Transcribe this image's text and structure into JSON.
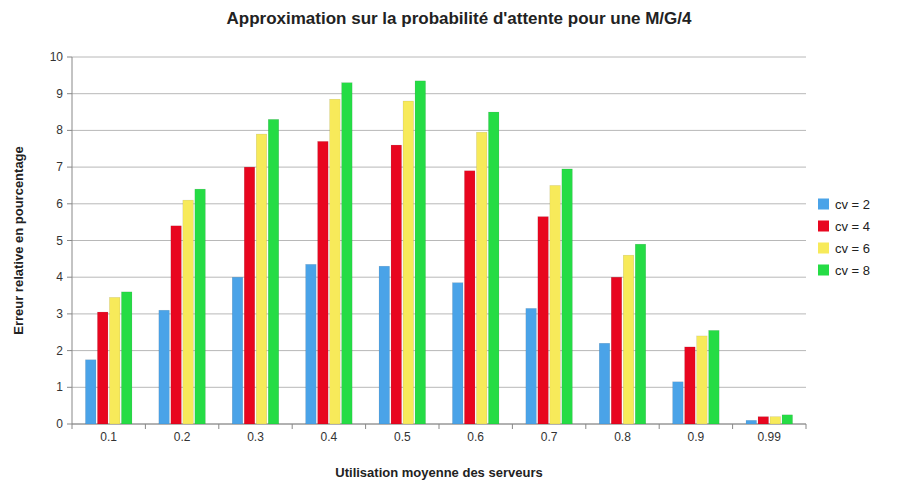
{
  "chart_data": {
    "type": "bar",
    "title": "Approximation sur la probabilité d'attente pour une M/G/4",
    "x_label": "Utilisation moyenne des serveurs",
    "y_label": "Erreur relative en pourcentage",
    "categories": [
      "0.1",
      "0.2",
      "0.3",
      "0.4",
      "0.5",
      "0.6",
      "0.7",
      "0.8",
      "0.9",
      "0.99"
    ],
    "series": [
      {
        "name": "cv = 2",
        "color": "#4aa3e8",
        "values": [
          1.75,
          3.1,
          4.0,
          4.35,
          4.3,
          3.85,
          3.15,
          2.2,
          1.15,
          0.1
        ]
      },
      {
        "name": "cv = 4",
        "color": "#e8061f",
        "values": [
          3.05,
          5.4,
          7.0,
          7.7,
          7.6,
          6.9,
          5.65,
          4.0,
          2.1,
          0.2
        ]
      },
      {
        "name": "cv = 6",
        "color": "#f7ea5a",
        "values": [
          3.45,
          6.1,
          7.9,
          8.85,
          8.8,
          7.95,
          6.5,
          4.6,
          2.4,
          0.2
        ]
      },
      {
        "name": "cv = 8",
        "color": "#25dc45",
        "values": [
          3.6,
          6.4,
          8.3,
          9.3,
          9.35,
          8.5,
          6.95,
          4.9,
          2.55,
          0.25
        ]
      }
    ],
    "ylim": [
      0,
      10
    ],
    "yticks": [
      0,
      1,
      2,
      3,
      4,
      5,
      6,
      7,
      8,
      9,
      10
    ],
    "grid": true,
    "legend": "right"
  }
}
